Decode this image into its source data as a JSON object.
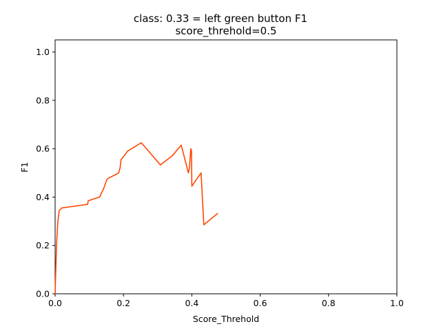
{
  "chart_data": {
    "type": "line",
    "title": "class: 0.33 = left green button F1",
    "subtitle": "score_threhold=0.5",
    "xlabel": "Score_Threhold",
    "ylabel": "F1",
    "xlim": [
      0.0,
      1.0
    ],
    "ylim": [
      0.0,
      1.05
    ],
    "xticks": [
      "0.0",
      "0.2",
      "0.4",
      "0.6",
      "0.8",
      "1.0"
    ],
    "yticks": [
      "0.0",
      "0.2",
      "0.4",
      "0.6",
      "0.8",
      "1.0"
    ],
    "grid": false,
    "series": [
      {
        "color": "#ff4500",
        "x": [
          0.0,
          0.004,
          0.008,
          0.012,
          0.02,
          0.095,
          0.097,
          0.13,
          0.142,
          0.152,
          0.186,
          0.19,
          0.193,
          0.212,
          0.252,
          0.308,
          0.343,
          0.369,
          0.39,
          0.393,
          0.397,
          0.399,
          0.4,
          0.427,
          0.435,
          0.476
        ],
        "y": [
          0.0,
          0.2,
          0.3,
          0.345,
          0.355,
          0.37,
          0.385,
          0.4,
          0.435,
          0.475,
          0.5,
          0.52,
          0.555,
          0.59,
          0.625,
          0.533,
          0.571,
          0.615,
          0.5,
          0.52,
          0.6,
          0.59,
          0.445,
          0.5,
          0.285,
          0.333
        ]
      }
    ]
  }
}
